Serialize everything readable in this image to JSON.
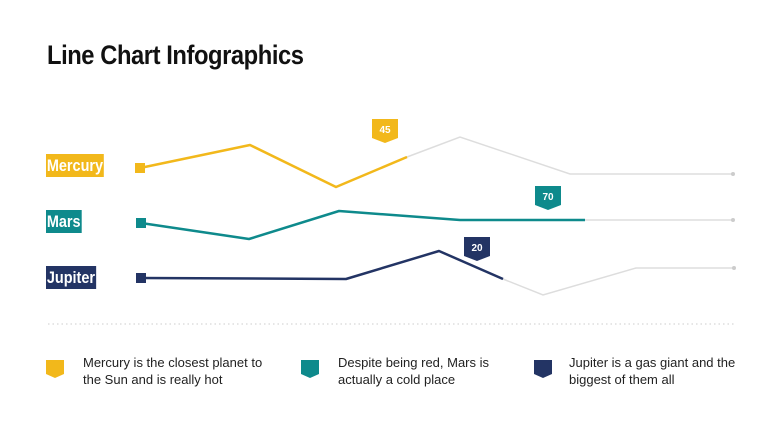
{
  "title": "Line Chart Infographics",
  "chart_data": {
    "type": "line",
    "series": [
      {
        "name": "Mercury",
        "label": "45",
        "color": "#f2b81b"
      },
      {
        "name": "Mars",
        "label": "70",
        "color": "#0e8a8c"
      },
      {
        "name": "Jupiter",
        "label": "20",
        "color": "#233464"
      }
    ],
    "grid": false
  },
  "legend": [
    {
      "text": "Mercury is the closest planet to the Sun and is really hot",
      "color": "#f2b81b"
    },
    {
      "text": "Despite being red, Mars is actually a cold place",
      "color": "#0e8a8c"
    },
    {
      "text": "Jupiter is a gas giant and the biggest of them all",
      "color": "#233464"
    }
  ],
  "track_color": "#dddddd"
}
